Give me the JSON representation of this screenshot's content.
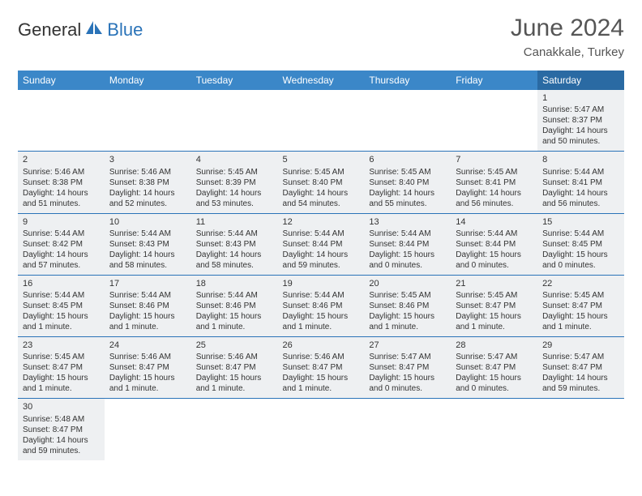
{
  "logo": {
    "text1": "General",
    "text2": "Blue"
  },
  "title": "June 2024",
  "location": "Canakkale, Turkey",
  "header_bg": "#3b87c8",
  "header_bg_saturday": "#2a6aa3",
  "cell_bg": "#eef0f2",
  "border_color": "#2a73b8",
  "day_headers": [
    "Sunday",
    "Monday",
    "Tuesday",
    "Wednesday",
    "Thursday",
    "Friday",
    "Saturday"
  ],
  "weeks": [
    [
      null,
      null,
      null,
      null,
      null,
      null,
      {
        "n": "1",
        "sunrise": "Sunrise: 5:47 AM",
        "sunset": "Sunset: 8:37 PM",
        "daylight": "Daylight: 14 hours and 50 minutes."
      }
    ],
    [
      {
        "n": "2",
        "sunrise": "Sunrise: 5:46 AM",
        "sunset": "Sunset: 8:38 PM",
        "daylight": "Daylight: 14 hours and 51 minutes."
      },
      {
        "n": "3",
        "sunrise": "Sunrise: 5:46 AM",
        "sunset": "Sunset: 8:38 PM",
        "daylight": "Daylight: 14 hours and 52 minutes."
      },
      {
        "n": "4",
        "sunrise": "Sunrise: 5:45 AM",
        "sunset": "Sunset: 8:39 PM",
        "daylight": "Daylight: 14 hours and 53 minutes."
      },
      {
        "n": "5",
        "sunrise": "Sunrise: 5:45 AM",
        "sunset": "Sunset: 8:40 PM",
        "daylight": "Daylight: 14 hours and 54 minutes."
      },
      {
        "n": "6",
        "sunrise": "Sunrise: 5:45 AM",
        "sunset": "Sunset: 8:40 PM",
        "daylight": "Daylight: 14 hours and 55 minutes."
      },
      {
        "n": "7",
        "sunrise": "Sunrise: 5:45 AM",
        "sunset": "Sunset: 8:41 PM",
        "daylight": "Daylight: 14 hours and 56 minutes."
      },
      {
        "n": "8",
        "sunrise": "Sunrise: 5:44 AM",
        "sunset": "Sunset: 8:41 PM",
        "daylight": "Daylight: 14 hours and 56 minutes."
      }
    ],
    [
      {
        "n": "9",
        "sunrise": "Sunrise: 5:44 AM",
        "sunset": "Sunset: 8:42 PM",
        "daylight": "Daylight: 14 hours and 57 minutes."
      },
      {
        "n": "10",
        "sunrise": "Sunrise: 5:44 AM",
        "sunset": "Sunset: 8:43 PM",
        "daylight": "Daylight: 14 hours and 58 minutes."
      },
      {
        "n": "11",
        "sunrise": "Sunrise: 5:44 AM",
        "sunset": "Sunset: 8:43 PM",
        "daylight": "Daylight: 14 hours and 58 minutes."
      },
      {
        "n": "12",
        "sunrise": "Sunrise: 5:44 AM",
        "sunset": "Sunset: 8:44 PM",
        "daylight": "Daylight: 14 hours and 59 minutes."
      },
      {
        "n": "13",
        "sunrise": "Sunrise: 5:44 AM",
        "sunset": "Sunset: 8:44 PM",
        "daylight": "Daylight: 15 hours and 0 minutes."
      },
      {
        "n": "14",
        "sunrise": "Sunrise: 5:44 AM",
        "sunset": "Sunset: 8:44 PM",
        "daylight": "Daylight: 15 hours and 0 minutes."
      },
      {
        "n": "15",
        "sunrise": "Sunrise: 5:44 AM",
        "sunset": "Sunset: 8:45 PM",
        "daylight": "Daylight: 15 hours and 0 minutes."
      }
    ],
    [
      {
        "n": "16",
        "sunrise": "Sunrise: 5:44 AM",
        "sunset": "Sunset: 8:45 PM",
        "daylight": "Daylight: 15 hours and 1 minute."
      },
      {
        "n": "17",
        "sunrise": "Sunrise: 5:44 AM",
        "sunset": "Sunset: 8:46 PM",
        "daylight": "Daylight: 15 hours and 1 minute."
      },
      {
        "n": "18",
        "sunrise": "Sunrise: 5:44 AM",
        "sunset": "Sunset: 8:46 PM",
        "daylight": "Daylight: 15 hours and 1 minute."
      },
      {
        "n": "19",
        "sunrise": "Sunrise: 5:44 AM",
        "sunset": "Sunset: 8:46 PM",
        "daylight": "Daylight: 15 hours and 1 minute."
      },
      {
        "n": "20",
        "sunrise": "Sunrise: 5:45 AM",
        "sunset": "Sunset: 8:46 PM",
        "daylight": "Daylight: 15 hours and 1 minute."
      },
      {
        "n": "21",
        "sunrise": "Sunrise: 5:45 AM",
        "sunset": "Sunset: 8:47 PM",
        "daylight": "Daylight: 15 hours and 1 minute."
      },
      {
        "n": "22",
        "sunrise": "Sunrise: 5:45 AM",
        "sunset": "Sunset: 8:47 PM",
        "daylight": "Daylight: 15 hours and 1 minute."
      }
    ],
    [
      {
        "n": "23",
        "sunrise": "Sunrise: 5:45 AM",
        "sunset": "Sunset: 8:47 PM",
        "daylight": "Daylight: 15 hours and 1 minute."
      },
      {
        "n": "24",
        "sunrise": "Sunrise: 5:46 AM",
        "sunset": "Sunset: 8:47 PM",
        "daylight": "Daylight: 15 hours and 1 minute."
      },
      {
        "n": "25",
        "sunrise": "Sunrise: 5:46 AM",
        "sunset": "Sunset: 8:47 PM",
        "daylight": "Daylight: 15 hours and 1 minute."
      },
      {
        "n": "26",
        "sunrise": "Sunrise: 5:46 AM",
        "sunset": "Sunset: 8:47 PM",
        "daylight": "Daylight: 15 hours and 1 minute."
      },
      {
        "n": "27",
        "sunrise": "Sunrise: 5:47 AM",
        "sunset": "Sunset: 8:47 PM",
        "daylight": "Daylight: 15 hours and 0 minutes."
      },
      {
        "n": "28",
        "sunrise": "Sunrise: 5:47 AM",
        "sunset": "Sunset: 8:47 PM",
        "daylight": "Daylight: 15 hours and 0 minutes."
      },
      {
        "n": "29",
        "sunrise": "Sunrise: 5:47 AM",
        "sunset": "Sunset: 8:47 PM",
        "daylight": "Daylight: 14 hours and 59 minutes."
      }
    ],
    [
      {
        "n": "30",
        "sunrise": "Sunrise: 5:48 AM",
        "sunset": "Sunset: 8:47 PM",
        "daylight": "Daylight: 14 hours and 59 minutes."
      },
      null,
      null,
      null,
      null,
      null,
      null
    ]
  ]
}
